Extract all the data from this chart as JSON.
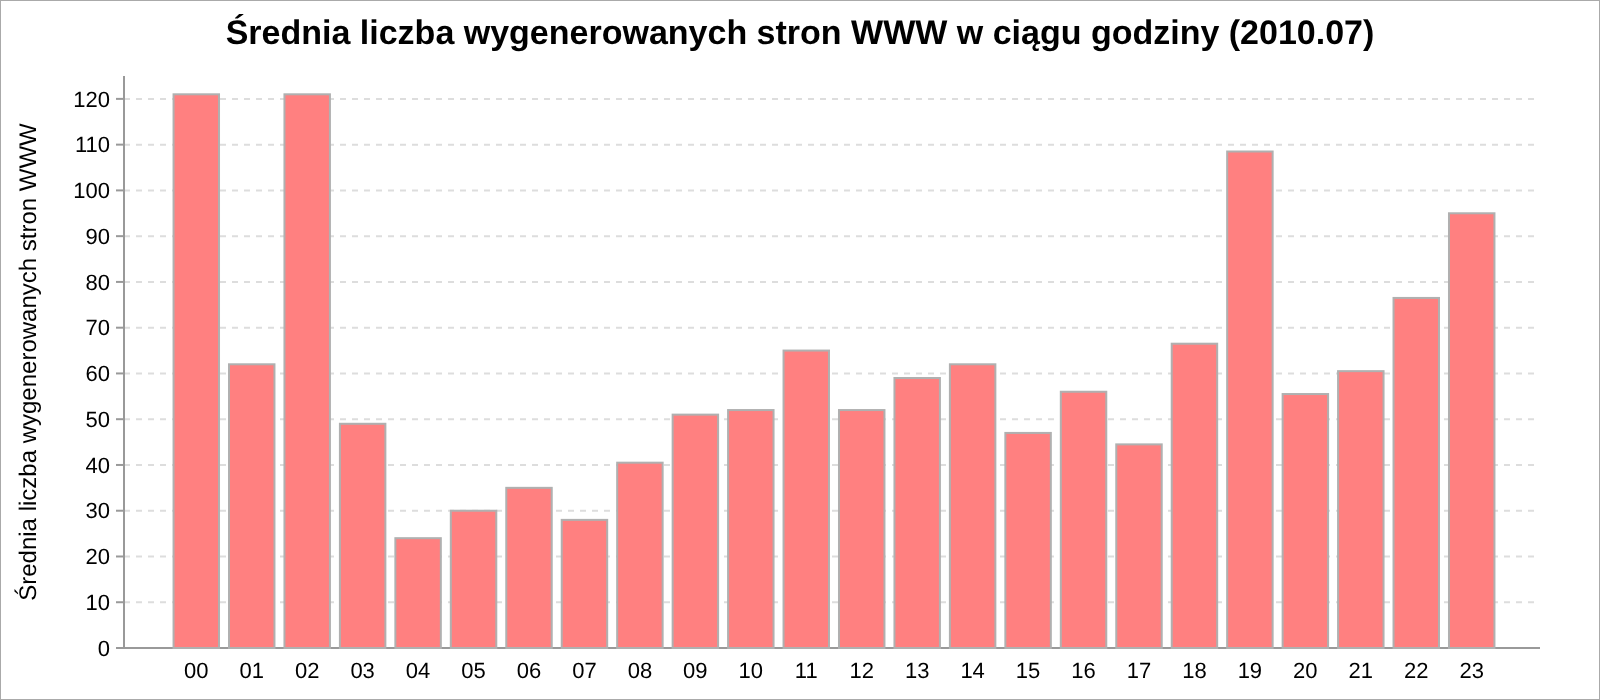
{
  "chart_data": {
    "type": "bar",
    "title": "Średnia liczba wygenerowanych stron WWW w ciągu godziny (2010.07)",
    "ylabel": "Średnia liczba wygenerowanych stron WWW",
    "categories": [
      "00",
      "01",
      "02",
      "03",
      "04",
      "05",
      "06",
      "07",
      "08",
      "09",
      "10",
      "11",
      "12",
      "13",
      "14",
      "15",
      "16",
      "17",
      "18",
      "19",
      "20",
      "21",
      "22",
      "23"
    ],
    "values": [
      121,
      62,
      121,
      49,
      24,
      30,
      35,
      28,
      40.5,
      51,
      52,
      65,
      52,
      59,
      62,
      47,
      56,
      44.5,
      66.5,
      108.5,
      55.5,
      60.5,
      76.5,
      95
    ],
    "color": "#ff8080",
    "ylim": [
      0,
      125
    ],
    "yticks": [
      0,
      10,
      20,
      30,
      40,
      50,
      60,
      70,
      80,
      90,
      100,
      110,
      120
    ],
    "grid": "y"
  }
}
